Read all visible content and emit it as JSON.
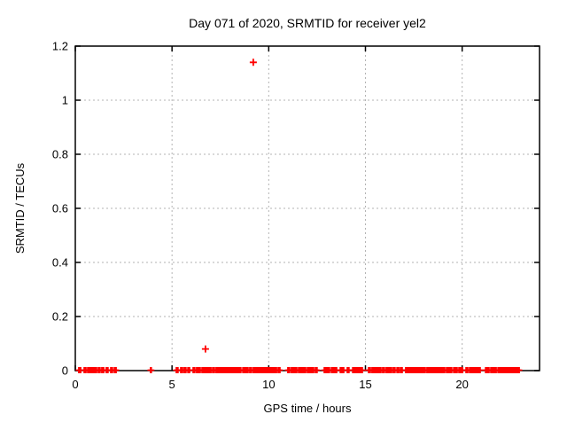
{
  "title": "Day 071 of 2020, SRMTID for receiver yel2",
  "chart_data": {
    "type": "scatter",
    "title": "Day 071 of 2020, SRMTID for receiver yel2",
    "xlabel": "GPS time / hours",
    "ylabel": "SRMTID / TECUs",
    "xlim": [
      0,
      24
    ],
    "ylim": [
      0,
      1.2
    ],
    "xticks": [
      0,
      5,
      10,
      15,
      20
    ],
    "xtick_labels": [
      "0",
      "5",
      "10",
      "15",
      "20"
    ],
    "yticks": [
      0,
      0.2,
      0.4,
      0.6,
      0.8,
      1.0,
      1.2
    ],
    "ytick_labels": [
      "0",
      "0.2",
      "0.4",
      "0.6",
      "0.8",
      "1",
      "1.2"
    ],
    "grid": true,
    "grid_color": "#b3b3b3",
    "border_color": "#000000",
    "marker": "plus",
    "marker_color": "#ff0000",
    "legend": "none",
    "outlier_points": [
      {
        "x": 6.73,
        "y": 0.08
      },
      {
        "x": 9.2,
        "y": 1.14
      }
    ],
    "baseline_value": 0.0,
    "baseline_segments": [
      [
        0.18,
        0.28
      ],
      [
        0.46,
        0.55
      ],
      [
        0.64,
        0.73
      ],
      [
        0.78,
        1.1
      ],
      [
        1.19,
        1.28
      ],
      [
        1.37,
        1.47
      ],
      [
        1.6,
        1.69
      ],
      [
        1.83,
        1.92
      ],
      [
        2.02,
        2.11
      ],
      [
        3.89,
        3.93
      ],
      [
        5.22,
        5.31
      ],
      [
        5.45,
        5.54
      ],
      [
        5.63,
        5.72
      ],
      [
        5.82,
        5.91
      ],
      [
        6.09,
        6.18
      ],
      [
        6.27,
        6.46
      ],
      [
        6.55,
        7.01
      ],
      [
        7.1,
        7.19
      ],
      [
        7.28,
        8.56
      ],
      [
        8.66,
        8.93
      ],
      [
        9.02,
        9.11
      ],
      [
        9.2,
        10.4
      ],
      [
        10.49,
        10.58
      ],
      [
        10.99,
        11.08
      ],
      [
        11.17,
        11.45
      ],
      [
        11.54,
        11.91
      ],
      [
        12.0,
        12.32
      ],
      [
        12.41,
        12.5
      ],
      [
        12.87,
        13.14
      ],
      [
        13.24,
        13.51
      ],
      [
        13.7,
        13.88
      ],
      [
        14.06,
        14.15
      ],
      [
        14.34,
        14.84
      ],
      [
        15.16,
        15.25
      ],
      [
        15.34,
        15.8
      ],
      [
        15.89,
        15.98
      ],
      [
        16.07,
        16.35
      ],
      [
        16.44,
        16.53
      ],
      [
        16.63,
        16.72
      ],
      [
        16.81,
        16.9
      ],
      [
        17.08,
        18.09
      ],
      [
        18.18,
        19.1
      ],
      [
        19.19,
        19.46
      ],
      [
        19.56,
        19.74
      ],
      [
        19.83,
        20.02
      ],
      [
        20.2,
        20.29
      ],
      [
        20.38,
        20.93
      ],
      [
        21.21,
        21.39
      ],
      [
        21.48,
        21.76
      ],
      [
        21.85,
        22.95
      ]
    ]
  }
}
